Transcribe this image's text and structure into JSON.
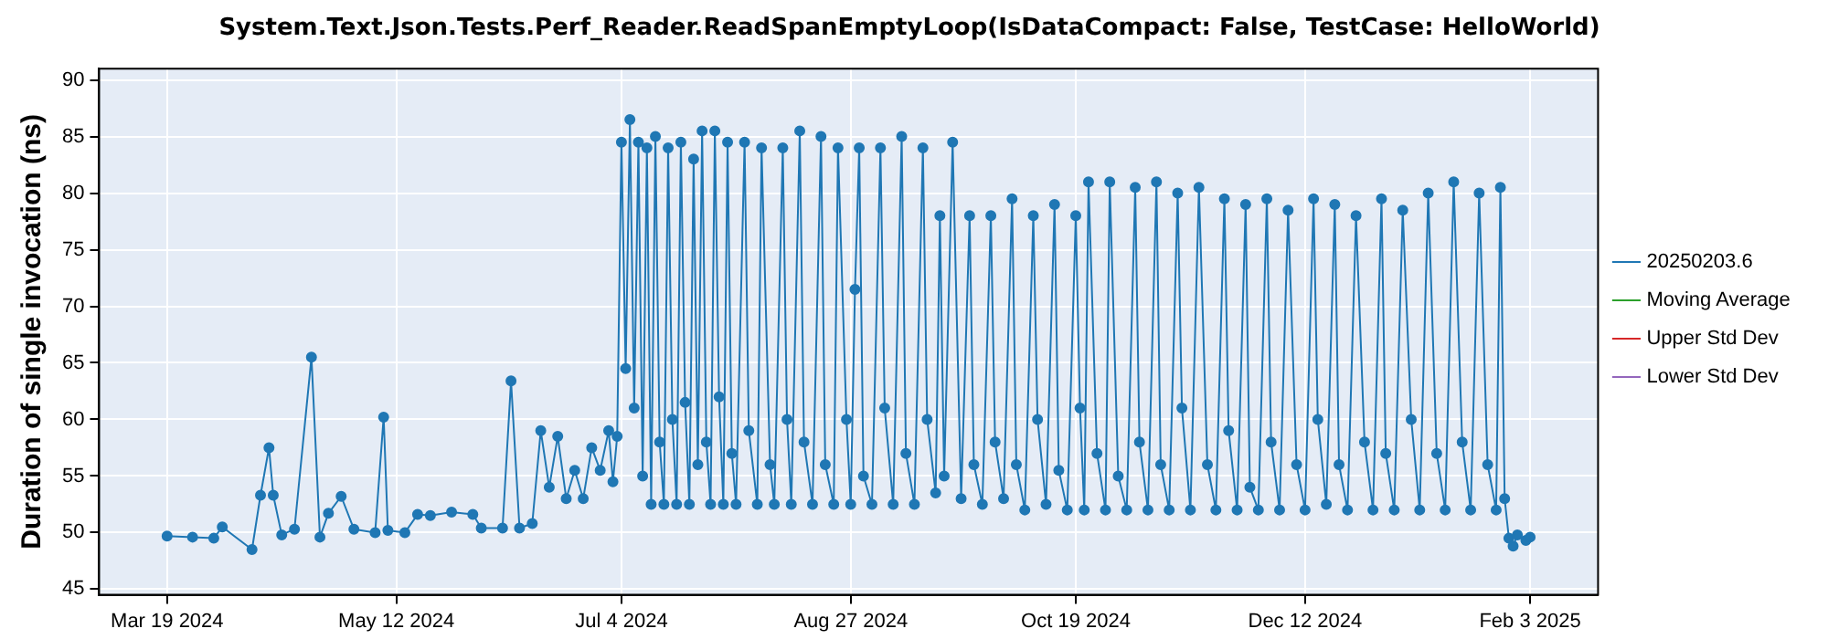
{
  "chart_data": {
    "type": "line",
    "title": "System.Text.Json.Tests.Perf_Reader.ReadSpanEmptyLoop(IsDataCompact: False, TestCase: HelloWorld)",
    "ylabel": "Duration of single invocation (ns)",
    "xlim": [
      "2024-03-03",
      "2025-02-19"
    ],
    "xticks": [
      {
        "value": "2024-03-19",
        "label": "Mar 19 2024"
      },
      {
        "value": "2024-05-12",
        "label": "May 12 2024"
      },
      {
        "value": "2024-07-04",
        "label": "Jul 4 2024"
      },
      {
        "value": "2024-08-27",
        "label": "Aug 27 2024"
      },
      {
        "value": "2024-10-19",
        "label": "Oct 19 2024"
      },
      {
        "value": "2024-12-12",
        "label": "Dec 12 2024"
      },
      {
        "value": "2025-02-03",
        "label": "Feb 3 2025"
      }
    ],
    "ylim": [
      44.5,
      91
    ],
    "yticks": [
      45,
      50,
      55,
      60,
      65,
      70,
      75,
      80,
      85,
      90
    ],
    "grid": true,
    "legend": "right",
    "marker": "circle",
    "line_style": "solid",
    "series": [
      {
        "name": "20250203.6",
        "color": "#1f77b4",
        "x": [
          "2024-03-19",
          "2024-03-25",
          "2024-03-30",
          "2024-04-01",
          "2024-04-08",
          "2024-04-10",
          "2024-04-12",
          "2024-04-13",
          "2024-04-15",
          "2024-04-18",
          "2024-04-22",
          "2024-04-24",
          "2024-04-26",
          "2024-04-29",
          "2024-05-02",
          "2024-05-07",
          "2024-05-09",
          "2024-05-10",
          "2024-05-14",
          "2024-05-17",
          "2024-05-20",
          "2024-05-25",
          "2024-05-30",
          "2024-06-01",
          "2024-06-06",
          "2024-06-08",
          "2024-06-10",
          "2024-06-13",
          "2024-06-15",
          "2024-06-17",
          "2024-06-19",
          "2024-06-21",
          "2024-06-23",
          "2024-06-25",
          "2024-06-27",
          "2024-06-29",
          "2024-07-01",
          "2024-07-02",
          "2024-07-03",
          "2024-07-04",
          "2024-07-05",
          "2024-07-06",
          "2024-07-07",
          "2024-07-08",
          "2024-07-09",
          "2024-07-10",
          "2024-07-11",
          "2024-07-12",
          "2024-07-13",
          "2024-07-14",
          "2024-07-15",
          "2024-07-16",
          "2024-07-17",
          "2024-07-18",
          "2024-07-19",
          "2024-07-20",
          "2024-07-21",
          "2024-07-22",
          "2024-07-23",
          "2024-07-24",
          "2024-07-25",
          "2024-07-26",
          "2024-07-27",
          "2024-07-28",
          "2024-07-29",
          "2024-07-30",
          "2024-07-31",
          "2024-08-02",
          "2024-08-03",
          "2024-08-05",
          "2024-08-06",
          "2024-08-08",
          "2024-08-09",
          "2024-08-11",
          "2024-08-12",
          "2024-08-13",
          "2024-08-15",
          "2024-08-16",
          "2024-08-18",
          "2024-08-20",
          "2024-08-21",
          "2024-08-23",
          "2024-08-24",
          "2024-08-26",
          "2024-08-27",
          "2024-08-28",
          "2024-08-29",
          "2024-08-30",
          "2024-09-01",
          "2024-09-03",
          "2024-09-04",
          "2024-09-06",
          "2024-09-08",
          "2024-09-09",
          "2024-09-11",
          "2024-09-13",
          "2024-09-14",
          "2024-09-16",
          "2024-09-17",
          "2024-09-18",
          "2024-09-20",
          "2024-09-22",
          "2024-09-24",
          "2024-09-25",
          "2024-09-27",
          "2024-09-29",
          "2024-09-30",
          "2024-10-02",
          "2024-10-04",
          "2024-10-05",
          "2024-10-07",
          "2024-10-09",
          "2024-10-10",
          "2024-10-12",
          "2024-10-14",
          "2024-10-15",
          "2024-10-17",
          "2024-10-19",
          "2024-10-20",
          "2024-10-21",
          "2024-10-22",
          "2024-10-24",
          "2024-10-26",
          "2024-10-27",
          "2024-10-29",
          "2024-10-31",
          "2024-11-02",
          "2024-11-03",
          "2024-11-05",
          "2024-11-07",
          "2024-11-08",
          "2024-11-10",
          "2024-11-12",
          "2024-11-13",
          "2024-11-15",
          "2024-11-17",
          "2024-11-19",
          "2024-11-21",
          "2024-11-23",
          "2024-11-24",
          "2024-11-26",
          "2024-11-28",
          "2024-11-29",
          "2024-12-01",
          "2024-12-03",
          "2024-12-04",
          "2024-12-06",
          "2024-12-08",
          "2024-12-10",
          "2024-12-12",
          "2024-12-14",
          "2024-12-15",
          "2024-12-17",
          "2024-12-19",
          "2024-12-20",
          "2024-12-22",
          "2024-12-24",
          "2024-12-26",
          "2024-12-28",
          "2024-12-30",
          "2024-12-31",
          "2025-01-02",
          "2025-01-04",
          "2025-01-06",
          "2025-01-08",
          "2025-01-10",
          "2025-01-12",
          "2025-01-14",
          "2025-01-16",
          "2025-01-18",
          "2025-01-20",
          "2025-01-22",
          "2025-01-24",
          "2025-01-26",
          "2025-01-27",
          "2025-01-28",
          "2025-01-29",
          "2025-01-30",
          "2025-01-31",
          "2025-02-02",
          "2025-02-03"
        ],
        "values": [
          49.7,
          49.6,
          49.5,
          50.5,
          48.5,
          53.3,
          57.5,
          53.3,
          49.8,
          50.3,
          65.5,
          49.6,
          51.7,
          53.2,
          50.3,
          50.0,
          60.2,
          50.2,
          50.0,
          51.6,
          51.5,
          51.8,
          51.6,
          50.4,
          50.4,
          63.4,
          50.4,
          50.8,
          59,
          54,
          58.5,
          53,
          55.5,
          53,
          57.5,
          55.5,
          59,
          54.5,
          58.5,
          84.5,
          64.5,
          86.5,
          61,
          84.5,
          55,
          84,
          52.5,
          85,
          58,
          52.5,
          84,
          60,
          52.5,
          84.5,
          61.5,
          52.5,
          83,
          56,
          85.5,
          58,
          52.5,
          85.5,
          62,
          52.5,
          84.5,
          57,
          52.5,
          84.5,
          59,
          52.5,
          84,
          56,
          52.5,
          84,
          60,
          52.5,
          85.5,
          58,
          52.5,
          85,
          56,
          52.5,
          84,
          60,
          52.5,
          71.5,
          84,
          55,
          52.5,
          84,
          61,
          52.5,
          85,
          57,
          52.5,
          84,
          60,
          53.5,
          78,
          55,
          84.5,
          53,
          78,
          56,
          52.5,
          78,
          58,
          53,
          79.5,
          56,
          52,
          78,
          60,
          52.5,
          79,
          55.5,
          52,
          78,
          61,
          52,
          81,
          57,
          52,
          81,
          55,
          52,
          80.5,
          58,
          52,
          81,
          56,
          52,
          80,
          61,
          52,
          80.5,
          56,
          52,
          79.5,
          59,
          52,
          79,
          54,
          52,
          79.5,
          58,
          52,
          78.5,
          56,
          52,
          79.5,
          60,
          52.5,
          79,
          56,
          52,
          78,
          58,
          52,
          79.5,
          57,
          52,
          78.5,
          60,
          52,
          80,
          57,
          52,
          81,
          58,
          52,
          80,
          56,
          52,
          80.5,
          53,
          49.5,
          48.8,
          49.8,
          49.3,
          49.6
        ]
      },
      {
        "name": "Moving Average",
        "color": "#2ca02c"
      },
      {
        "name": "Upper Std Dev",
        "color": "#d62728"
      },
      {
        "name": "Lower Std Dev",
        "color": "#9467bd"
      }
    ]
  }
}
